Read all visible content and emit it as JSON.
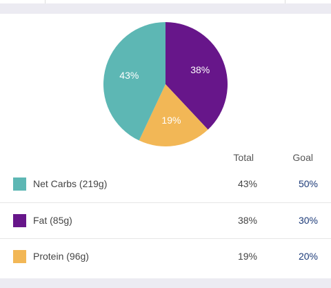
{
  "chart_data": {
    "type": "pie",
    "categories": [
      "Fat (85g)",
      "Protein (96g)",
      "Net Carbs (219g)"
    ],
    "values": [
      38,
      19,
      43
    ],
    "value_labels": [
      "38%",
      "19%",
      "43%"
    ],
    "colors": [
      "#67168a",
      "#f2b756",
      "#5db7b4"
    ]
  },
  "table": {
    "columns": [
      "Total",
      "Goal"
    ],
    "rows": [
      [
        "Net Carbs (219g)",
        "43%",
        "50%"
      ],
      [
        "Fat (85g)",
        "38%",
        "30%"
      ],
      [
        "Protein (96g)",
        "19%",
        "20%"
      ]
    ]
  }
}
